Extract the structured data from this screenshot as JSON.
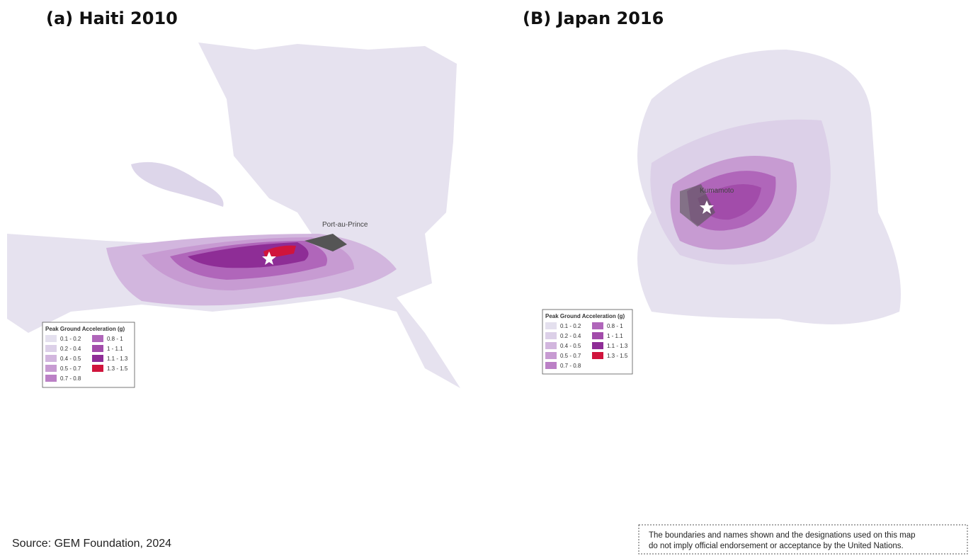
{
  "panels": [
    {
      "title": "(a) Haiti 2010",
      "place_label": "Port-au-Prince",
      "legend": {
        "title": "Peak Ground Acceleration (g)",
        "items": [
          {
            "label": "0.1 - 0.2",
            "color": "#e4e0ee"
          },
          {
            "label": "0.2 - 0.4",
            "color": "#dcd0e8"
          },
          {
            "label": "0.4 - 0.5",
            "color": "#d2b6de"
          },
          {
            "label": "0.5 - 0.7",
            "color": "#c79bd2"
          },
          {
            "label": "0.7 - 0.8",
            "color": "#bb80c6"
          },
          {
            "label": "0.8 - 1",
            "color": "#b066ba"
          },
          {
            "label": "1 - 1.1",
            "color": "#a24caa"
          },
          {
            "label": "1.1 - 1.3",
            "color": "#8e2d96"
          },
          {
            "label": "1.3 - 1.5",
            "color": "#d0143c"
          }
        ]
      }
    },
    {
      "title": "(B) Japan 2016",
      "place_label": "Kumamoto",
      "legend": {
        "title": "Peak Ground Acceleration (g)",
        "items": [
          {
            "label": "0.1 - 0.2",
            "color": "#e4e0ee"
          },
          {
            "label": "0.2 - 0.4",
            "color": "#dcd0e8"
          },
          {
            "label": "0.4 - 0.5",
            "color": "#d2b6de"
          },
          {
            "label": "0.5 - 0.7",
            "color": "#c79bd2"
          },
          {
            "label": "0.7 - 0.8",
            "color": "#bb80c6"
          },
          {
            "label": "0.8 - 1",
            "color": "#b066ba"
          },
          {
            "label": "1 - 1.1",
            "color": "#a24caa"
          },
          {
            "label": "1.1 - 1.3",
            "color": "#8e2d96"
          },
          {
            "label": "1.3 - 1.5",
            "color": "#d0143c"
          }
        ]
      }
    }
  ],
  "source": "Source: GEM Foundation, 2024",
  "disclaimer": [
    "The boundaries and names shown and the designations used on this map",
    "do not imply official endorsement or acceptance by the United Nations."
  ]
}
